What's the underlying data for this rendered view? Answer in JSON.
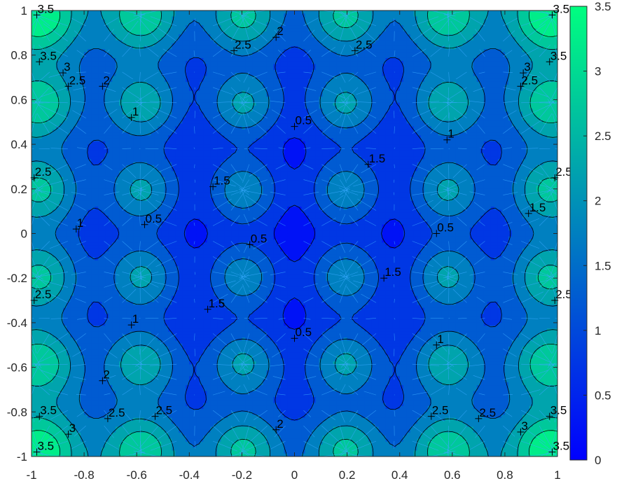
{
  "chart_data": {
    "type": "contour",
    "colormap": "winter",
    "x_range": [
      -1,
      1
    ],
    "y_range": [
      -1,
      1
    ],
    "x_ticks": [
      "-1",
      "-0.8",
      "-0.6",
      "-0.4",
      "-0.2",
      "0",
      "0.2",
      "0.4",
      "0.6",
      "0.8",
      "1"
    ],
    "y_ticks": [
      "1",
      "0.8",
      "0.6",
      "0.4",
      "0.2",
      "0",
      "-0.2",
      "-0.4",
      "-0.6",
      "-0.8",
      "-1"
    ],
    "color_range": [
      0,
      3.5
    ],
    "colorbar_ticks": [
      "3.5",
      "3",
      "2.5",
      "2",
      "1.5",
      "1",
      "0.5",
      "0"
    ],
    "levels": [
      0.5,
      1,
      1.5,
      2,
      2.5,
      3,
      3.5
    ],
    "contour_labels": [
      {
        "x": -0.98,
        "y": 0.98,
        "text": "3.5"
      },
      {
        "x": 0.98,
        "y": 0.98,
        "text": "3.5"
      },
      {
        "x": -0.07,
        "y": 0.88,
        "text": "2"
      },
      {
        "x": -0.23,
        "y": 0.82,
        "text": "2.5"
      },
      {
        "x": 0.23,
        "y": 0.82,
        "text": "2.5"
      },
      {
        "x": -0.97,
        "y": 0.77,
        "text": "3.5"
      },
      {
        "x": 0.97,
        "y": 0.77,
        "text": "3.5"
      },
      {
        "x": -0.88,
        "y": 0.72,
        "text": "3"
      },
      {
        "x": 0.87,
        "y": 0.72,
        "text": "3"
      },
      {
        "x": -0.86,
        "y": 0.66,
        "text": "2.5"
      },
      {
        "x": 0.86,
        "y": 0.66,
        "text": "2.5"
      },
      {
        "x": -0.73,
        "y": 0.66,
        "text": "2"
      },
      {
        "x": -0.62,
        "y": 0.52,
        "text": "1"
      },
      {
        "x": 0.0,
        "y": 0.48,
        "text": "0.5"
      },
      {
        "x": 0.58,
        "y": 0.42,
        "text": "1"
      },
      {
        "x": 0.28,
        "y": 0.31,
        "text": "1.5"
      },
      {
        "x": -0.99,
        "y": 0.25,
        "text": "2.5"
      },
      {
        "x": 0.99,
        "y": 0.25,
        "text": "2.5"
      },
      {
        "x": -0.31,
        "y": 0.21,
        "text": "1.5"
      },
      {
        "x": 0.89,
        "y": 0.09,
        "text": "1.5"
      },
      {
        "x": -0.83,
        "y": 0.02,
        "text": "1"
      },
      {
        "x": -0.57,
        "y": 0.04,
        "text": "0.5"
      },
      {
        "x": 0.54,
        "y": 0.0,
        "text": "0.5"
      },
      {
        "x": -0.17,
        "y": -0.05,
        "text": "0.5"
      },
      {
        "x": 0.34,
        "y": -0.2,
        "text": "1.5"
      },
      {
        "x": -0.33,
        "y": -0.34,
        "text": "1.5"
      },
      {
        "x": -0.99,
        "y": -0.3,
        "text": "2.5"
      },
      {
        "x": 0.99,
        "y": -0.3,
        "text": "2.5"
      },
      {
        "x": -0.62,
        "y": -0.41,
        "text": "1"
      },
      {
        "x": 0.0,
        "y": -0.47,
        "text": "0.5"
      },
      {
        "x": 0.54,
        "y": -0.5,
        "text": "1"
      },
      {
        "x": -0.73,
        "y": -0.66,
        "text": "2"
      },
      {
        "x": -0.97,
        "y": -0.82,
        "text": "3.5"
      },
      {
        "x": -0.71,
        "y": -0.83,
        "text": "2.5"
      },
      {
        "x": -0.53,
        "y": -0.82,
        "text": "2.5"
      },
      {
        "x": 0.52,
        "y": -0.82,
        "text": "2.5"
      },
      {
        "x": 0.7,
        "y": -0.83,
        "text": "2.5"
      },
      {
        "x": 0.97,
        "y": -0.82,
        "text": "3.5"
      },
      {
        "x": -0.86,
        "y": -0.9,
        "text": "3"
      },
      {
        "x": 0.86,
        "y": -0.89,
        "text": "3"
      },
      {
        "x": -0.07,
        "y": -0.88,
        "text": "2"
      },
      {
        "x": -0.98,
        "y": -0.98,
        "text": "3.5"
      },
      {
        "x": 0.98,
        "y": -0.98,
        "text": "3.5"
      }
    ]
  },
  "colors": {
    "colormap_low": "#0000ff",
    "colormap_high": "#00ff80",
    "contour_line": "#000000",
    "quiver": "#3aa9ff",
    "axes": "#262626",
    "background": "#ffffff"
  }
}
